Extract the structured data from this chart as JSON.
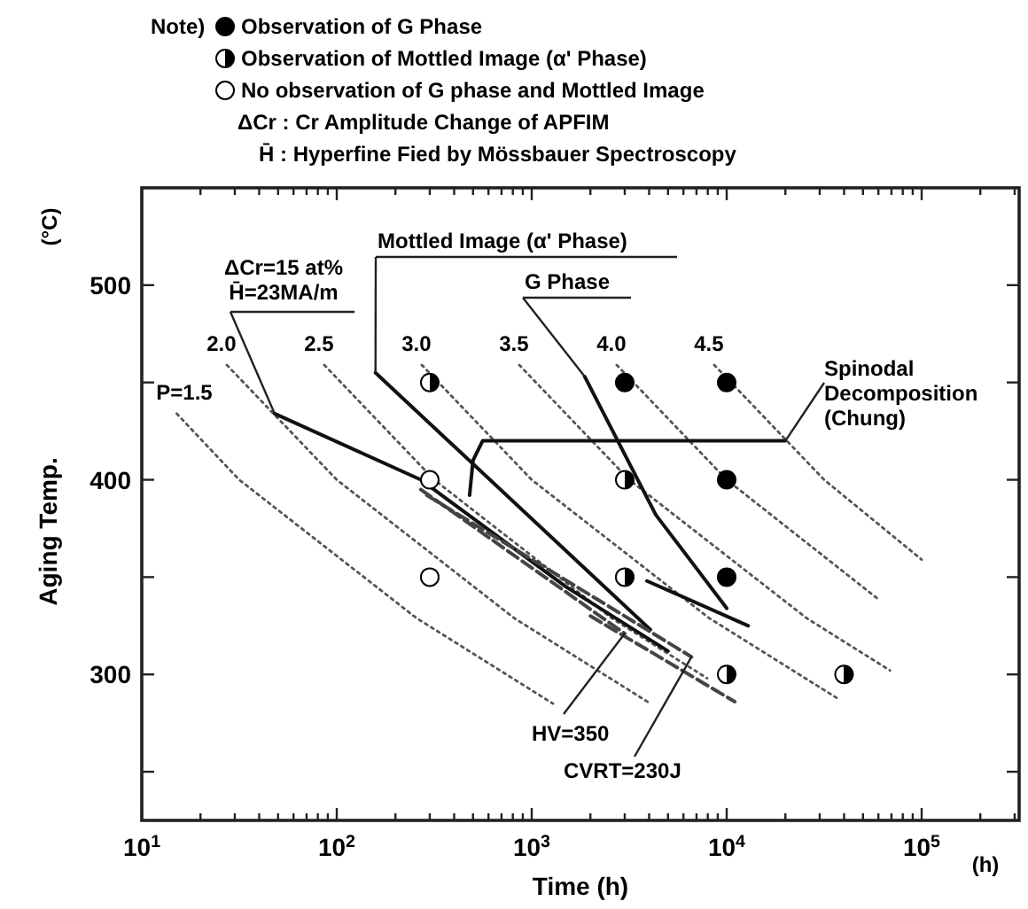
{
  "chart_data": {
    "type": "scatter",
    "xlabel": "Time  (h)",
    "ylabel": "Aging Temp.",
    "legend_title": "Note)",
    "legend": "top",
    "log": "x",
    "grid": false,
    "xlim": [
      10,
      316228
    ],
    "ylim": [
      225,
      550
    ],
    "xticks": [
      {
        "value": 10,
        "label": "10$^{1}$"
      },
      {
        "value": 20,
        "label": null
      },
      {
        "value": 30,
        "label": null
      },
      {
        "value": 40,
        "label": null
      },
      {
        "value": 50,
        "label": null
      },
      {
        "value": 60,
        "label": null
      },
      {
        "value": 70,
        "label": null
      },
      {
        "value": 80,
        "label": null
      },
      {
        "value": 90,
        "label": null
      },
      {
        "value": 100,
        "label": "10$^{2}$"
      },
      {
        "value": 200,
        "label": null
      },
      {
        "value": 300,
        "label": null
      },
      {
        "value": 400,
        "label": null
      },
      {
        "value": 500,
        "label": null
      },
      {
        "value": 600,
        "label": null
      },
      {
        "value": 700,
        "label": null
      },
      {
        "value": 800,
        "label": null
      },
      {
        "value": 900,
        "label": null
      },
      {
        "value": 1000,
        "label": "10$^{3}$"
      },
      {
        "value": 2000,
        "label": null
      },
      {
        "value": 3000,
        "label": null
      },
      {
        "value": 4000,
        "label": null
      },
      {
        "value": 5000,
        "label": null
      },
      {
        "value": 6000,
        "label": null
      },
      {
        "value": 7000,
        "label": null
      },
      {
        "value": 8000,
        "label": null
      },
      {
        "value": 9000,
        "label": null
      },
      {
        "value": 10000,
        "label": "10$^{4}$"
      },
      {
        "value": 20000,
        "label": null
      },
      {
        "value": 30000,
        "label": null
      },
      {
        "value": 40000,
        "label": null
      },
      {
        "value": 50000,
        "label": null
      },
      {
        "value": 60000,
        "label": null
      },
      {
        "value": 70000,
        "label": null
      },
      {
        "value": 80000,
        "label": null
      },
      {
        "value": 90000,
        "label": null
      },
      {
        "value": 100000,
        "label": "10$^{5}$"
      },
      {
        "value": 200000,
        "label": null
      },
      {
        "value": 300000,
        "label": null
      }
    ],
    "yticks": [
      {
        "value": 250,
        "label": null
      },
      300,
      {
        "value": 350,
        "label": null
      },
      400,
      {
        "value": 450,
        "label": null
      },
      500
    ],
    "annotations": [
      "ΔCr : Cr Amplitude Change of APFIM",
      "H̄ : Hyperfine Fied by Mössbauer Spectroscopy",
      "(°C)",
      "(h)",
      {
        "text": "ΔCr=15 at%\nH̄=23MA/m",
        "x": 48,
        "y": 434
      },
      {
        "text": "Mottled Image (α' Phase)",
        "x": 158,
        "y": 455
      },
      {
        "text": "G Phase",
        "x": 1870,
        "y": 453
      },
      {
        "text": "Spinodal\nDecomposition\n(Chung)",
        "x": 20000,
        "y": 420
      },
      {
        "text": "HV=350",
        "x": 3000,
        "y": 321
      },
      {
        "text": "CVRT=230J",
        "x": 6600,
        "y": 309
      }
    ],
    "series": [
      {
        "type": "line",
        "name": "P=1.5",
        "color": "#555555",
        "line_style": "dotted",
        "x": [
          15.1,
          31.6,
          256,
          1285
        ],
        "values": [
          434,
          400,
          329,
          285
        ]
      },
      {
        "type": "line",
        "name": "2.0",
        "color": "#555555",
        "line_style": "dotted",
        "x": [
          27.3,
          100,
          811,
          4064
        ],
        "values": [
          459,
          400,
          329,
          285
        ]
      },
      {
        "type": "line",
        "name": "2.5",
        "color": "#555555",
        "line_style": "dotted",
        "x": [
          86.3,
          316,
          2564,
          7943
        ],
        "values": [
          459,
          400,
          329,
          298
        ]
      },
      {
        "type": "line",
        "name": "3.0",
        "color": "#555555",
        "line_style": "dotted",
        "x": [
          273,
          1000,
          8110,
          36600
        ],
        "values": [
          459,
          400,
          329,
          288
        ]
      },
      {
        "type": "line",
        "name": "3.5",
        "color": "#555555",
        "line_style": "dotted",
        "x": [
          863,
          3162,
          25640,
          68900
        ],
        "values": [
          459,
          400,
          329,
          302
        ]
      },
      {
        "type": "line",
        "name": "4.0",
        "color": "#555555",
        "line_style": "dotted",
        "x": [
          2730,
          10000,
          59300
        ],
        "values": [
          459,
          400,
          339
        ]
      },
      {
        "type": "line",
        "name": "4.5",
        "color": "#555555",
        "line_style": "dotted",
        "x": [
          8630,
          31620,
          100000
        ],
        "values": [
          459,
          400,
          359
        ]
      },
      {
        "type": "line",
        "color": "#111111",
        "line_style": "solid",
        "x": [
          48,
          270,
          1500,
          5000
        ],
        "values": [
          434,
          400,
          345,
          312
        ]
      },
      {
        "type": "line",
        "color": "#111111",
        "line_style": "solid",
        "x": [
          158,
          4060
        ],
        "values": [
          455,
          323
        ]
      },
      {
        "type": "line",
        "color": "#111111",
        "line_style": "solid",
        "x": [
          1870,
          4330,
          10000
        ],
        "values": [
          453,
          382,
          334
        ]
      },
      {
        "type": "line",
        "color": "#111111",
        "line_style": "solid",
        "x": [
          3900,
          12900
        ],
        "values": [
          348,
          325
        ]
      },
      {
        "type": "line",
        "color": "#111111",
        "line_style": "solid",
        "x": [
          480,
          500,
          560,
          20000
        ],
        "values": [
          392,
          410,
          420,
          420
        ]
      },
      {
        "type": "line",
        "color": "#444444",
        "line_style": "dashed",
        "x": [
          270,
          3000
        ],
        "values": [
          395,
          321
        ]
      },
      {
        "type": "line",
        "color": "#444444",
        "line_style": "dashed",
        "x": [
          290,
          6600
        ],
        "values": [
          392,
          309
        ]
      },
      {
        "type": "line",
        "color": "#444444",
        "line_style": "dashed",
        "x": [
          2000,
          11000
        ],
        "values": [
          330,
          286
        ]
      },
      {
        "type": "scatter",
        "name": "Observation of G Phase",
        "marker": "circle",
        "color": "#000000",
        "x": [
          3000,
          10000,
          10000,
          10000
        ],
        "values": [
          450,
          450,
          400,
          350
        ]
      },
      {
        "type": "scatter",
        "name": "Observation of Mottled Image (α' Phase)",
        "marker": "half-circle",
        "color": "#000000",
        "x": [
          300,
          3000,
          3000,
          10000,
          40000
        ],
        "values": [
          450,
          400,
          350,
          300,
          300
        ]
      },
      {
        "type": "scatter",
        "name": "No observation of G phase and Mottled Image",
        "marker": "circle",
        "color": "#ffffff",
        "x": [
          300,
          300
        ],
        "values": [
          400,
          350
        ]
      }
    ]
  }
}
